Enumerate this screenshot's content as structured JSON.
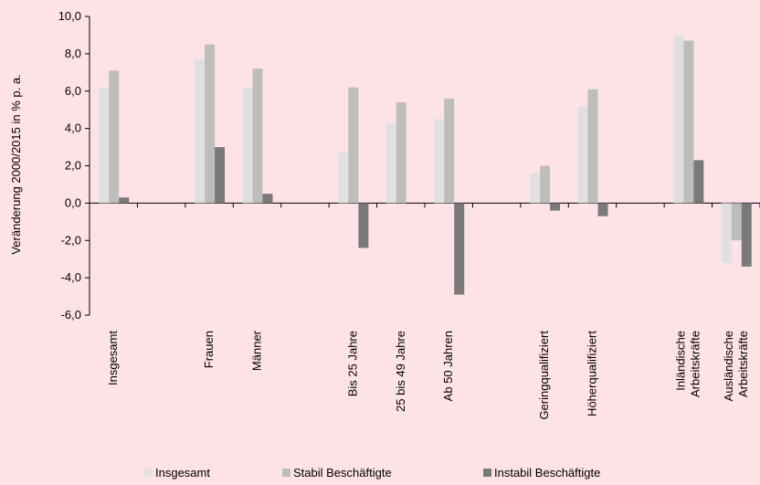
{
  "chart_data": {
    "type": "bar",
    "ylabel": "Veränderung 2000/2015 in % p. a.",
    "ylim": [
      -6,
      10
    ],
    "yticks": [
      "-6,0",
      "-4,0",
      "-2,0",
      "0,0",
      "2,0",
      "4,0",
      "6,0",
      "8,0",
      "10,0"
    ],
    "grid": false,
    "legend_position": "bottom",
    "categories": [
      [
        "Insgesamt"
      ],
      [],
      [
        "Frauen"
      ],
      [
        "Männer"
      ],
      [],
      [
        "Bis 25 Jahre"
      ],
      [
        "25 bis 49 Jahre"
      ],
      [
        "Ab 50 Jahren"
      ],
      [],
      [
        "Geringqualifiziert"
      ],
      [
        "Höherqualifiziert"
      ],
      [],
      [
        "Inländische",
        "Arbeitskräfte"
      ],
      [
        "Ausländische",
        "Arbeitskräfte"
      ]
    ],
    "series": [
      {
        "name": "Insgesamt",
        "color": "#e0e0e0",
        "values": [
          6.2,
          null,
          7.7,
          6.2,
          null,
          2.7,
          4.3,
          4.5,
          null,
          1.6,
          5.2,
          null,
          9.0,
          -3.2
        ]
      },
      {
        "name": "Stabil Beschäftigte",
        "color": "#bdbdbd",
        "values": [
          7.1,
          null,
          8.5,
          7.2,
          null,
          6.2,
          5.4,
          5.6,
          null,
          2.0,
          6.1,
          null,
          8.7,
          -2.0
        ]
      },
      {
        "name": "Instabil Beschäftigte",
        "color": "#7a7a7a",
        "values": [
          0.3,
          null,
          3.0,
          0.5,
          null,
          -2.4,
          null,
          -4.9,
          null,
          -0.4,
          -0.7,
          null,
          2.3,
          -3.4
        ]
      }
    ]
  }
}
